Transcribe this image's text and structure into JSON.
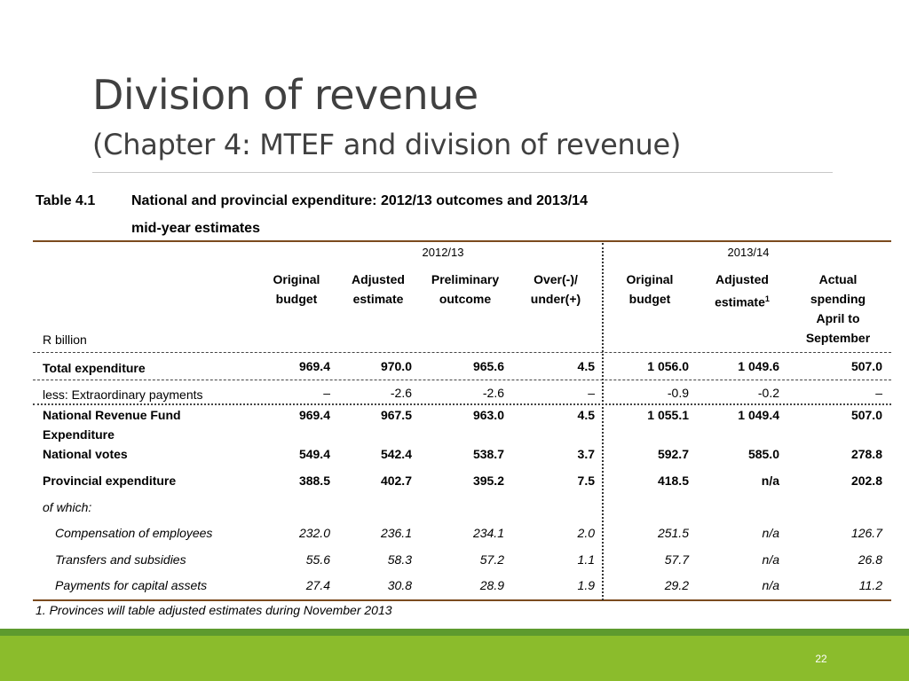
{
  "slide": {
    "title": "Division of revenue",
    "subtitle": "(Chapter 4: MTEF and division of revenue)",
    "page_number": "22"
  },
  "table": {
    "caption_label": "Table 4.1",
    "caption_line1": "National and provincial expenditure: 2012/13 outcomes and 2013/14",
    "caption_line2": "mid-year estimates",
    "period_1": "2012/13",
    "period_2": "2013/14",
    "unit_label": "R billion",
    "columns": [
      {
        "line1": "Original",
        "line2": "budget"
      },
      {
        "line1": "Adjusted",
        "line2": "estimate"
      },
      {
        "line1": "Preliminary",
        "line2": "outcome"
      },
      {
        "line1": "Over(-)/",
        "line2": "under(+)"
      },
      {
        "line1": "Original",
        "line2": "budget"
      },
      {
        "line1": "Adjusted",
        "line2": "estimate",
        "superscript": "1"
      },
      {
        "line1": "Actual",
        "line2": "spending",
        "line3": "April to",
        "line4": "September"
      }
    ],
    "rows": [
      {
        "label": "Total expenditure",
        "values": [
          "969.4",
          "970.0",
          "965.6",
          "4.5",
          "1 056.0",
          "1 049.6",
          "507.0"
        ]
      },
      {
        "label": "less: Extraordinary payments",
        "values": [
          "–",
          "-2.6",
          "-2.6",
          "–",
          "-0.9",
          "-0.2",
          "–"
        ]
      },
      {
        "label_line1": "National Revenue Fund",
        "label_line2": "Expenditure",
        "values": [
          "969.4",
          "967.5",
          "963.0",
          "4.5",
          "1 055.1",
          "1 049.4",
          "507.0"
        ]
      },
      {
        "label": "National votes",
        "values": [
          "549.4",
          "542.4",
          "538.7",
          "3.7",
          "592.7",
          "585.0",
          "278.8"
        ]
      },
      {
        "label": "Provincial expenditure",
        "values": [
          "388.5",
          "402.7",
          "395.2",
          "7.5",
          "418.5",
          "n/a",
          "202.8"
        ]
      },
      {
        "label": "of which:"
      },
      {
        "label": "Compensation of employees",
        "values": [
          "232.0",
          "236.1",
          "234.1",
          "2.0",
          "251.5",
          "n/a",
          "126.7"
        ]
      },
      {
        "label": "Transfers and subsidies",
        "values": [
          "55.6",
          "58.3",
          "57.2",
          "1.1",
          "57.7",
          "n/a",
          "26.8"
        ]
      },
      {
        "label": "Payments for capital assets",
        "values": [
          "27.4",
          "30.8",
          "28.9",
          "1.9",
          "29.2",
          "n/a",
          "11.2"
        ]
      }
    ],
    "footnote": "1. Provinces will table adjusted estimates during November 2013"
  }
}
